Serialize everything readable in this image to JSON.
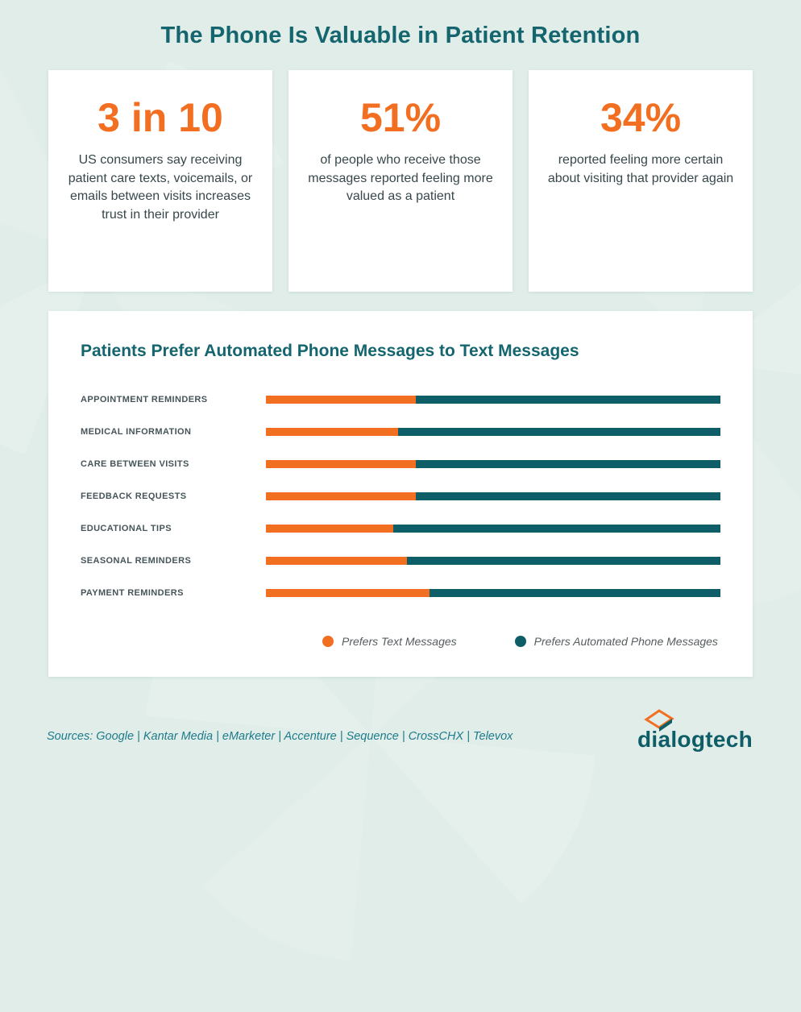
{
  "page": {
    "title": "The Phone Is Valuable in Patient Retention",
    "sources": "Sources: Google | Kantar Media | eMarketer | Accenture | Sequence | CrossCHX | Televox",
    "logo_text": "dialogtech"
  },
  "stats": [
    {
      "value": "3 in 10",
      "description": "US consumers say receiving patient care texts, voicemails, or emails between visits increases trust in their provider"
    },
    {
      "value": "51%",
      "description": "of people who receive those messages reported feeling more valued as a patient"
    },
    {
      "value": "34%",
      "description": "reported feeling more certain about visiting that provider again"
    }
  ],
  "chart_data": {
    "type": "bar",
    "orientation": "horizontal",
    "stacked": true,
    "title": "Patients Prefer Automated Phone Messages to Text Messages",
    "xlabel": "",
    "ylabel": "",
    "xlim": [
      0,
      100
    ],
    "grid": false,
    "legend_position": "bottom",
    "categories": [
      "APPOINTMENT REMINDERS",
      "MEDICAL INFORMATION",
      "CARE BETWEEN VISITS",
      "FEEDBACK REQUESTS",
      "EDUCATIONAL TIPS",
      "SEASONAL REMINDERS",
      "PAYMENT REMINDERS"
    ],
    "series": [
      {
        "name": "Prefers Text Messages",
        "color": "#f26f21",
        "values": [
          33,
          29,
          33,
          33,
          28,
          31,
          36
        ]
      },
      {
        "name": "Prefers Automated Phone Messages",
        "color": "#0e5e68",
        "values": [
          67,
          71,
          67,
          67,
          72,
          69,
          64
        ]
      }
    ]
  },
  "colors": {
    "background": "#e0ede8",
    "accent_orange": "#f26f21",
    "accent_teal": "#0e5e68",
    "title_teal": "#15656f",
    "sources_teal": "#1e7b8c",
    "body_text": "#37474b"
  }
}
